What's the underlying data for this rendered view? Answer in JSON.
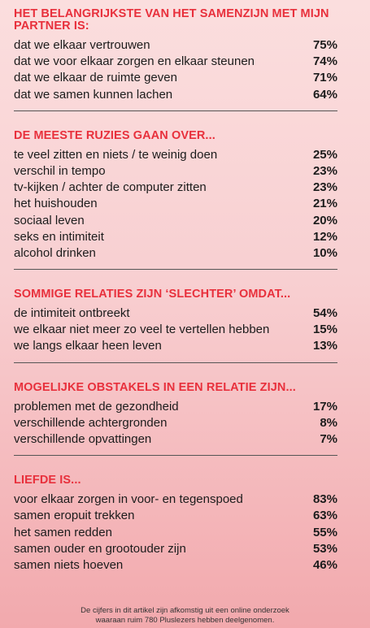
{
  "chart_data": [
    {
      "type": "table",
      "title": "HET BELANGRIJKSTE VAN HET SAMENZIJN MET MIJN PARTNER IS:",
      "rows": [
        {
          "label": "dat we elkaar vertrouwen",
          "value": "75%"
        },
        {
          "label": "dat we voor elkaar zorgen en elkaar steunen",
          "value": "74%"
        },
        {
          "label": "dat we elkaar de ruimte geven",
          "value": "71%"
        },
        {
          "label": "dat we samen kunnen lachen",
          "value": "64%"
        }
      ]
    },
    {
      "type": "table",
      "title": "DE MEESTE RUZIES GAAN OVER...",
      "rows": [
        {
          "label": "te veel zitten en niets / te weinig doen",
          "value": "25%"
        },
        {
          "label": "verschil in tempo",
          "value": "23%"
        },
        {
          "label": "tv-kijken / achter de computer zitten",
          "value": "23%"
        },
        {
          "label": "het huishouden",
          "value": "21%"
        },
        {
          "label": "sociaal leven",
          "value": "20%"
        },
        {
          "label": "seks en intimiteit",
          "value": "12%"
        },
        {
          "label": "alcohol drinken",
          "value": "10%"
        }
      ]
    },
    {
      "type": "table",
      "title": "SOMMIGE RELATIES ZIJN ‘SLECHTER’ OMDAT...",
      "rows": [
        {
          "label": "de intimiteit ontbreekt",
          "value": "54%"
        },
        {
          "label": "we elkaar niet meer zo veel te vertellen hebben",
          "value": "15%"
        },
        {
          "label": "we langs elkaar heen leven",
          "value": "13%"
        }
      ]
    },
    {
      "type": "table",
      "title": "MOGELIJKE OBSTAKELS IN EEN RELATIE ZIJN...",
      "rows": [
        {
          "label": "problemen met de gezondheid",
          "value": "17%"
        },
        {
          "label": "verschillende achtergronden",
          "value": "8%"
        },
        {
          "label": "verschillende opvattingen",
          "value": "7%"
        }
      ]
    },
    {
      "type": "table",
      "title": "LIEFDE IS...",
      "rows": [
        {
          "label": "voor elkaar zorgen in voor- en tegenspoed",
          "value": "83%"
        },
        {
          "label": "samen eropuit trekken",
          "value": "63%"
        },
        {
          "label": "het samen redden",
          "value": "55%"
        },
        {
          "label": "samen ouder en grootouder zijn",
          "value": "53%"
        },
        {
          "label": "samen niets hoeven",
          "value": "46%"
        }
      ]
    }
  ],
  "footnote": {
    "line1": "De cijfers in dit artikel zijn afkomstig uit een online onderzoek",
    "line2": "waaraan ruim 780 Pluslezers hebben deelgenomen."
  },
  "colors": {
    "heading": "#e8303c",
    "text": "#1c1c1c",
    "background_top": "#fbdede",
    "background_bottom": "#f2a9ad"
  }
}
